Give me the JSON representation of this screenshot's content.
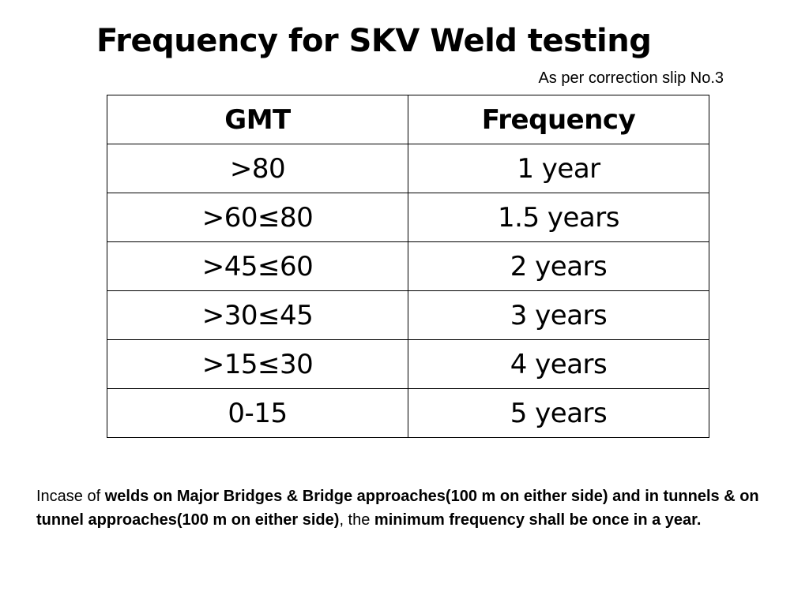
{
  "title": "Frequency for SKV Weld testing",
  "note": "As per correction slip No.3",
  "table": {
    "headers": [
      "GMT",
      "Frequency"
    ],
    "rows": [
      [
        ">80",
        "1 year"
      ],
      [
        ">60≤80",
        "1.5 years"
      ],
      [
        ">45≤60",
        "2 years"
      ],
      [
        ">30≤45",
        "3 years"
      ],
      [
        ">15≤30",
        "4 years"
      ],
      [
        "0-15",
        "5 years"
      ]
    ]
  },
  "footnote": {
    "part1": "Incase of ",
    "part2_bold": "welds on Major Bridges & Bridge approaches(100 m on either side) and in tunnels & on tunnel approaches(100 m on either side)",
    "part3": ", the ",
    "part4_bold": "minimum frequency shall be once in a year."
  }
}
